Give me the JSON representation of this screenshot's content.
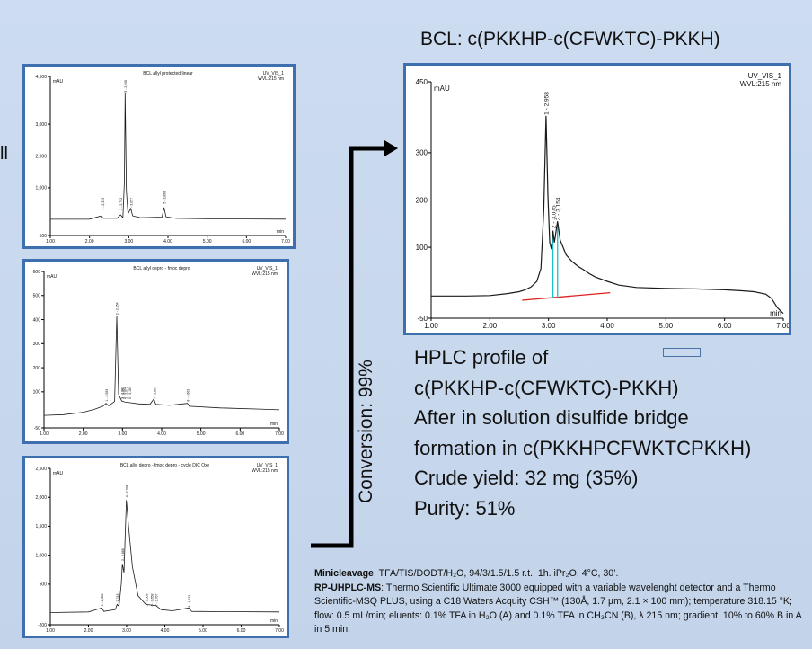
{
  "main_title": "BCL: c(PKKHP-c(CFWKTC)-PKKH)",
  "left_cut_text": "ll",
  "conversion_label": "Conversion: 99%",
  "summary": {
    "line1": "HPLC profile of",
    "line2": "c(PKKHP-c(CFWKTC)-PKKH)",
    "line3": "After in solution disulfide bridge",
    "line4": "formation in c(PKKHPCFWKTCPKKH)",
    "line5": "Crude yield: 32 mg (35%)",
    "line6": "Purity: 51%"
  },
  "method": {
    "minicleavage_label": "Minicleavage",
    "minicleavage_text": ": TFA/TIS/DODT/H₂O, 94/3/1.5/1.5 r.t., 1h. iPr₂O, 4°C, 30’.",
    "rp_label": "RP-UHPLC-MS",
    "rp_text": ": Thermo Scientific Ultimate 3000 equipped with a variable wavelenght detector and a Thermo Scientific-MSQ PLUS, using a C18 Waters Acquity CSH™ (130Å, 1.7 µm, 2.1 × 100 mm); temperature 318.15 °K; flow: 0.5 mL/min; eluents: 0.1% TFA in H₂O (A) and 0.1% TFA in CH₃CN (B), λ 215 nm; gradient: 10% to 60% B in A in 5 min."
  },
  "colors": {
    "frame": "#3e6fae",
    "trace": "#1a1a1a",
    "baseline": "#e02020",
    "integration": "#19c3c3",
    "arrow": "#000000"
  },
  "chart_data": [
    {
      "id": "main",
      "type": "line",
      "title": "",
      "header_right_1": "UV_VIS_1",
      "header_right_2": "WVL:215 nm",
      "ylabel": "mAU",
      "xlabel": "min",
      "xlim": [
        1.0,
        7.0
      ],
      "ylim": [
        -50,
        450
      ],
      "yticks": [
        -50,
        100,
        200,
        300,
        450
      ],
      "xticks": [
        "1.00",
        "2.00",
        "3.00",
        "4.00",
        "5.00",
        "6.00",
        "7.00"
      ],
      "peak_labels": [
        {
          "x": 2.958,
          "y": 380,
          "text": "1 - 2,958"
        },
        {
          "x": 3.075,
          "y": 140,
          "text": "2 - 3,075"
        },
        {
          "x": 3.154,
          "y": 157,
          "text": "3 - 3,154"
        }
      ],
      "points": [
        [
          1.0,
          -3
        ],
        [
          1.6,
          -3
        ],
        [
          2.0,
          -2
        ],
        [
          2.3,
          2
        ],
        [
          2.5,
          6
        ],
        [
          2.6,
          10
        ],
        [
          2.7,
          16
        ],
        [
          2.8,
          28
        ],
        [
          2.87,
          55
        ],
        [
          2.92,
          180
        ],
        [
          2.958,
          378
        ],
        [
          2.99,
          210
        ],
        [
          3.02,
          110
        ],
        [
          3.05,
          96
        ],
        [
          3.075,
          135
        ],
        [
          3.1,
          110
        ],
        [
          3.154,
          155
        ],
        [
          3.2,
          115
        ],
        [
          3.3,
          84
        ],
        [
          3.4,
          70
        ],
        [
          3.5,
          60
        ],
        [
          3.6,
          52
        ],
        [
          3.7,
          44
        ],
        [
          3.8,
          37
        ],
        [
          4.0,
          28
        ],
        [
          4.2,
          20
        ],
        [
          4.5,
          15
        ],
        [
          5.0,
          13
        ],
        [
          5.5,
          12
        ],
        [
          6.0,
          10
        ],
        [
          6.3,
          8
        ],
        [
          6.5,
          6
        ],
        [
          6.7,
          1
        ],
        [
          6.8,
          -8
        ],
        [
          6.9,
          -28
        ],
        [
          7.0,
          -40
        ]
      ],
      "baseline": [
        [
          2.55,
          -12
        ],
        [
          4.05,
          4
        ]
      ]
    },
    {
      "id": "small1",
      "type": "line",
      "title": "BCL allyl protected linear",
      "header_right_1": "UV_VIS_1",
      "header_right_2": "WVL:215 nm",
      "ylabel": "mAU",
      "xlabel": "min",
      "xlim": [
        1.0,
        7.0
      ],
      "ylim": [
        -500,
        4500
      ],
      "yticks": [
        -500,
        1000,
        2000,
        3000,
        4500
      ],
      "ytick_labels": [
        "-500",
        "1,000",
        "2,000",
        "3,000",
        "4,500"
      ],
      "xticks": [
        "1.00",
        "2.00",
        "3.00",
        "4.00",
        "5.00",
        "6.00",
        "7.00"
      ],
      "peak_labels": [
        {
          "x": 2.333,
          "y": 300,
          "text": "1 - 2,333"
        },
        {
          "x": 2.792,
          "y": 300,
          "text": "2 - 2,792"
        },
        {
          "x": 2.908,
          "y": 4000,
          "text": "3 - 2,908"
        },
        {
          "x": 3.057,
          "y": 300,
          "text": "4 - 3,057"
        },
        {
          "x": 3.898,
          "y": 500,
          "text": "5 - 3,898"
        }
      ],
      "points": [
        [
          1.0,
          10
        ],
        [
          2.0,
          15
        ],
        [
          2.3,
          120
        ],
        [
          2.35,
          40
        ],
        [
          2.7,
          40
        ],
        [
          2.79,
          150
        ],
        [
          2.85,
          60
        ],
        [
          2.89,
          1200
        ],
        [
          2.908,
          4000
        ],
        [
          2.94,
          900
        ],
        [
          2.98,
          180
        ],
        [
          3.05,
          350
        ],
        [
          3.1,
          120
        ],
        [
          3.3,
          60
        ],
        [
          3.85,
          80
        ],
        [
          3.9,
          380
        ],
        [
          3.95,
          90
        ],
        [
          4.2,
          40
        ],
        [
          5.0,
          25
        ],
        [
          6.0,
          20
        ],
        [
          7.0,
          15
        ]
      ]
    },
    {
      "id": "small2",
      "type": "line",
      "title": "BCL allyl depro - fmoc depro",
      "header_right_1": "UV_VIS_1",
      "header_right_2": "WVL:215 nm",
      "ylabel": "mAU",
      "xlabel": "min",
      "xlim": [
        1.0,
        7.0
      ],
      "ylim": [
        -50,
        600
      ],
      "yticks": [
        -50,
        100,
        200,
        300,
        400,
        500,
        600
      ],
      "ytick_labels": [
        "-50",
        "100",
        "200",
        "300",
        "400",
        "500",
        "600"
      ],
      "xticks": [
        "1.00",
        "2.00",
        "3.00",
        "4.00",
        "5.00",
        "6.00",
        "7.00"
      ],
      "peak_labels": [
        {
          "x": 2.583,
          "y": 60,
          "text": "1 - 2,583"
        },
        {
          "x": 2.854,
          "y": 420,
          "text": "2 - 2,854"
        },
        {
          "x": 2.981,
          "y": 70,
          "text": "3 - 2,981"
        },
        {
          "x": 3.024,
          "y": 70,
          "text": "4 - 3,024"
        },
        {
          "x": 3.075,
          "y": 70,
          "text": "5 - 3,075"
        },
        {
          "x": 3.181,
          "y": 70,
          "text": "6 - 3,181"
        },
        {
          "x": 3.807,
          "y": 70,
          "text": "7 - 3,807"
        },
        {
          "x": 4.663,
          "y": 60,
          "text": "8 - 4,663"
        }
      ],
      "points": [
        [
          1.0,
          2
        ],
        [
          1.5,
          5
        ],
        [
          2.0,
          15
        ],
        [
          2.3,
          28
        ],
        [
          2.5,
          40
        ],
        [
          2.58,
          52
        ],
        [
          2.65,
          42
        ],
        [
          2.8,
          60
        ],
        [
          2.854,
          415
        ],
        [
          2.9,
          90
        ],
        [
          2.98,
          62
        ],
        [
          3.05,
          58
        ],
        [
          3.18,
          55
        ],
        [
          3.4,
          50
        ],
        [
          3.7,
          48
        ],
        [
          3.8,
          70
        ],
        [
          3.85,
          48
        ],
        [
          4.2,
          44
        ],
        [
          4.66,
          52
        ],
        [
          4.7,
          40
        ],
        [
          5.5,
          33
        ],
        [
          6.5,
          28
        ],
        [
          7.0,
          25
        ]
      ]
    },
    {
      "id": "small3",
      "type": "line",
      "title": "BCL allyl depro - fmoc depro - cycle DIC Oxy",
      "header_right_1": "UV_VIS_1",
      "header_right_2": "WVL:215 nm",
      "ylabel": "mAU",
      "xlabel": "min",
      "xlim": [
        1.0,
        7.0
      ],
      "ylim": [
        -200,
        2500
      ],
      "yticks": [
        -200,
        500,
        1000,
        1500,
        2000,
        2500
      ],
      "ytick_labels": [
        "-200",
        "500",
        "1,000",
        "1,500",
        "2,000",
        "2,500"
      ],
      "xticks": [
        "1.00",
        "2.00",
        "3.00",
        "4.00",
        "5.00",
        "6.00",
        "7.00"
      ],
      "peak_labels": [
        {
          "x": 2.352,
          "y": 120,
          "text": "1 - 2,352"
        },
        {
          "x": 2.743,
          "y": 120,
          "text": "2 - 2,743"
        },
        {
          "x": 2.888,
          "y": 900,
          "text": "3 - 2,888"
        },
        {
          "x": 2.994,
          "y": 2000,
          "text": "4 - 2,994"
        },
        {
          "x": 3.508,
          "y": 120,
          "text": "5 - 3,508"
        },
        {
          "x": 3.658,
          "y": 120,
          "text": "6 - 3,658"
        },
        {
          "x": 3.767,
          "y": 120,
          "text": "7 - 3,767"
        },
        {
          "x": 4.633,
          "y": 100,
          "text": "8 - 4,633"
        }
      ],
      "points": [
        [
          1.0,
          10
        ],
        [
          2.0,
          20
        ],
        [
          2.35,
          90
        ],
        [
          2.4,
          30
        ],
        [
          2.7,
          60
        ],
        [
          2.75,
          150
        ],
        [
          2.8,
          120
        ],
        [
          2.86,
          500
        ],
        [
          2.888,
          850
        ],
        [
          2.93,
          700
        ],
        [
          2.994,
          1950
        ],
        [
          3.05,
          1500
        ],
        [
          3.15,
          800
        ],
        [
          3.3,
          300
        ],
        [
          3.5,
          150
        ],
        [
          3.66,
          140
        ],
        [
          3.77,
          130
        ],
        [
          3.9,
          60
        ],
        [
          4.2,
          40
        ],
        [
          4.63,
          90
        ],
        [
          4.7,
          30
        ],
        [
          5.5,
          25
        ],
        [
          7.0,
          20
        ]
      ]
    }
  ]
}
